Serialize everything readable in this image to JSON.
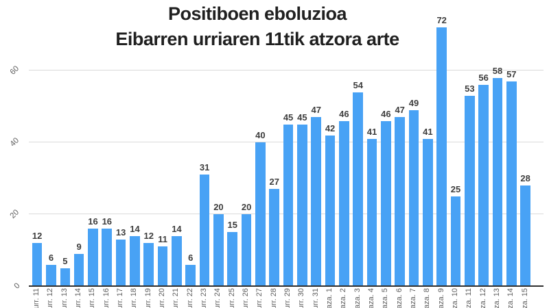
{
  "title": {
    "line1": "Positiboen eboluzioa",
    "line2": "Eibarren urriaren 11tik atzora arte"
  },
  "y_axis": {
    "tick_labels": [
      "0",
      "20",
      "40",
      "60"
    ]
  },
  "chart_data": {
    "type": "bar",
    "title": "Positiboen eboluzioa Eibarren urriaren 11tik atzora arte",
    "categories": [
      "urr. 11",
      "urr. 12",
      "urr. 13",
      "urr. 14",
      "urr. 15",
      "urr. 16",
      "urr. 17",
      "urr. 18",
      "urr. 19",
      "urr. 20",
      "urr. 21",
      "urr. 22",
      "urr. 23",
      "urr. 24",
      "urr. 25",
      "urr. 26",
      "urr. 27",
      "urr. 28",
      "urr. 29",
      "urr. 30",
      "urr. 31",
      "aza. 1",
      "aza. 2",
      "aza. 3",
      "aza. 4",
      "aza. 5",
      "aza. 6",
      "aza. 7",
      "aza. 8",
      "aza. 9",
      "aza. 10",
      "aza. 11",
      "aza. 12",
      "aza. 13",
      "aza. 14",
      "aza. 15"
    ],
    "values": [
      12,
      6,
      5,
      9,
      16,
      16,
      13,
      14,
      12,
      11,
      14,
      6,
      31,
      20,
      15,
      20,
      40,
      27,
      45,
      45,
      47,
      42,
      46,
      54,
      41,
      46,
      47,
      49,
      41,
      72,
      25,
      53,
      56,
      58,
      57,
      28
    ],
    "xlabel": "",
    "ylabel": "",
    "yticks": [
      0,
      20,
      40,
      60
    ],
    "ylim": [
      0,
      73
    ],
    "grid": true,
    "legend": "none",
    "annotations": "value labels above each bar",
    "x_labels_rotated": true
  },
  "colors": {
    "bar": "#48a2f5",
    "grid": "#d9d9d9",
    "axis_line": "#2f2f2f",
    "axis_text": "#5e5e5e",
    "value_text": "#3d3d3d",
    "title_text": "#202020",
    "background": "#ffffff"
  }
}
